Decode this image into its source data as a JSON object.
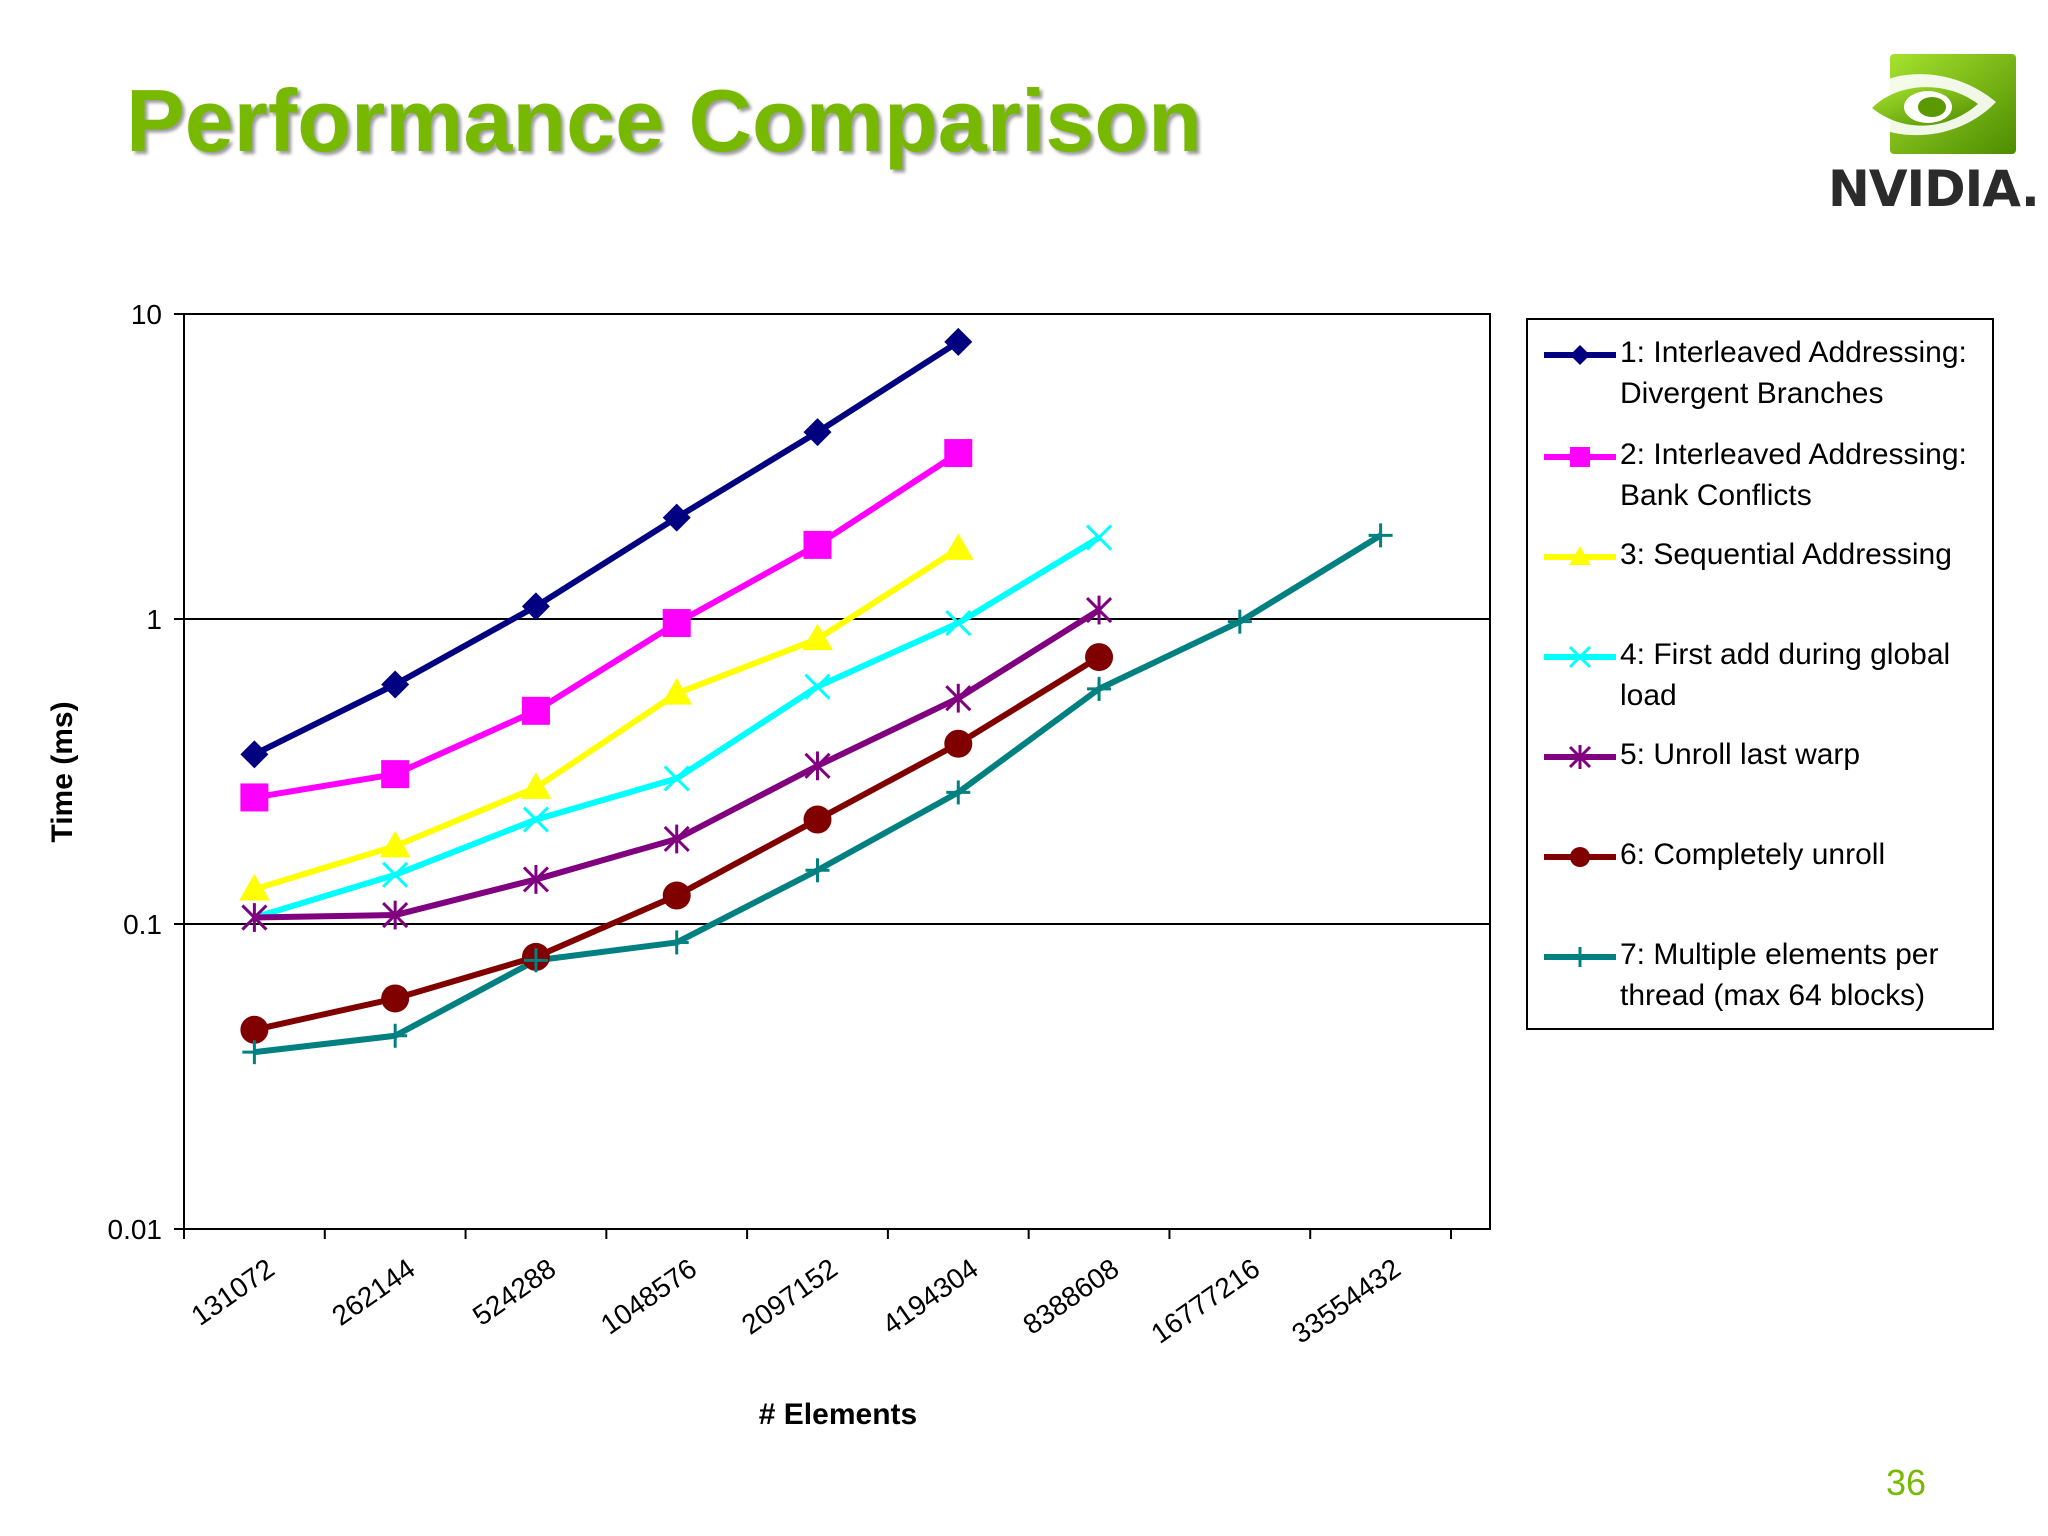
{
  "slide": {
    "title": "Performance Comparison",
    "logo_text": "NVIDIA.",
    "page_number": "36",
    "title_color": "#76b900"
  },
  "chart_data": {
    "type": "line",
    "title": "",
    "xlabel": "# Elements",
    "ylabel": "Time (ms)",
    "y_scale": "log",
    "ylim": [
      0.01,
      10
    ],
    "y_tick_labels": [
      "10",
      "1",
      "0.1",
      "0.01"
    ],
    "y_tick_values": [
      10,
      1,
      0.1,
      0.01
    ],
    "categories": [
      "131072",
      "262144",
      "524288",
      "1048576",
      "2097152",
      "4194304",
      "8388608",
      "16777216",
      "33554432"
    ],
    "legend_position": "right",
    "series": [
      {
        "name": "1: Interleaved Addressing: Divergent Branches",
        "name_lines": [
          "1: Interleaved Addressing:",
          "Divergent Branches"
        ],
        "color": "#000080",
        "marker": "diamond",
        "values": [
          0.36,
          0.61,
          1.1,
          2.15,
          4.1,
          8.1,
          null,
          null,
          null
        ]
      },
      {
        "name": "2: Interleaved Addressing: Bank Conflicts",
        "name_lines": [
          "2: Interleaved Addressing:",
          "Bank Conflicts"
        ],
        "color": "#ff00ff",
        "marker": "square",
        "values": [
          0.26,
          0.31,
          0.5,
          0.97,
          1.75,
          3.5,
          null,
          null,
          null
        ]
      },
      {
        "name": "3: Sequential Addressing",
        "name_lines": [
          "3: Sequential Addressing"
        ],
        "color": "#ffff00",
        "marker": "triangle",
        "values": [
          0.13,
          0.18,
          0.28,
          0.57,
          0.86,
          1.7,
          null,
          null,
          null
        ]
      },
      {
        "name": "4: First add during global load",
        "name_lines": [
          "4: First add during global",
          "load"
        ],
        "color": "#00ffff",
        "marker": "x",
        "values": [
          0.105,
          0.145,
          0.22,
          0.3,
          0.6,
          0.97,
          1.85,
          null,
          null
        ]
      },
      {
        "name": "5: Unroll last warp",
        "name_lines": [
          "5: Unroll last warp"
        ],
        "color": "#800080",
        "marker": "star",
        "values": [
          0.105,
          0.107,
          0.14,
          0.19,
          0.33,
          0.55,
          1.07,
          null,
          null
        ]
      },
      {
        "name": "6: Completely unroll",
        "name_lines": [
          "6: Completely unroll"
        ],
        "color": "#800000",
        "marker": "circle",
        "values": [
          0.045,
          0.057,
          0.078,
          0.124,
          0.22,
          0.39,
          0.75,
          null,
          null
        ]
      },
      {
        "name": "7: Multiple elements per thread (max 64 blocks)",
        "name_lines": [
          "7: Multiple elements per",
          "thread (max 64 blocks)"
        ],
        "color": "#008080",
        "marker": "plus",
        "values": [
          0.038,
          0.043,
          0.076,
          0.087,
          0.15,
          0.27,
          0.59,
          0.98,
          1.88
        ]
      }
    ]
  }
}
